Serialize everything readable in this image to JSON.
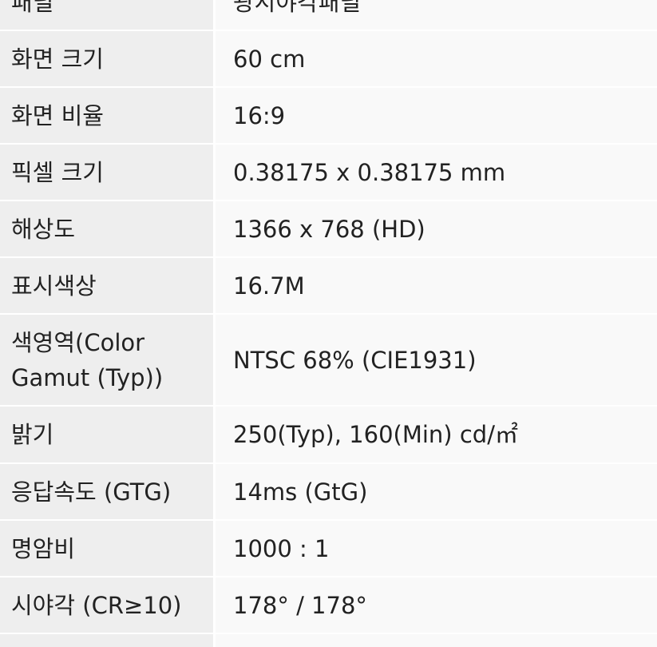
{
  "specs": [
    {
      "label": "패널",
      "value": "광시야각패널"
    },
    {
      "label": "화면 크기",
      "value": "60 cm"
    },
    {
      "label": "화면 비율",
      "value": "16:9"
    },
    {
      "label": "픽셀 크기",
      "value": "0.38175 x 0.38175 mm"
    },
    {
      "label": "해상도",
      "value": "1366 x 768 (HD)"
    },
    {
      "label": "표시색상",
      "value": "16.7M"
    },
    {
      "label": "색영역(Color Gamut (Typ))",
      "value": "NTSC 68% (CIE1931)"
    },
    {
      "label": "밝기",
      "value": "250(Typ), 160(Min) cd/㎡"
    },
    {
      "label": "응답속도 (GTG)",
      "value": "14ms (GtG)"
    },
    {
      "label": "명암비",
      "value": "1000 : 1"
    },
    {
      "label": "시야각 (CR≥10)",
      "value": "178° / 178°"
    }
  ]
}
